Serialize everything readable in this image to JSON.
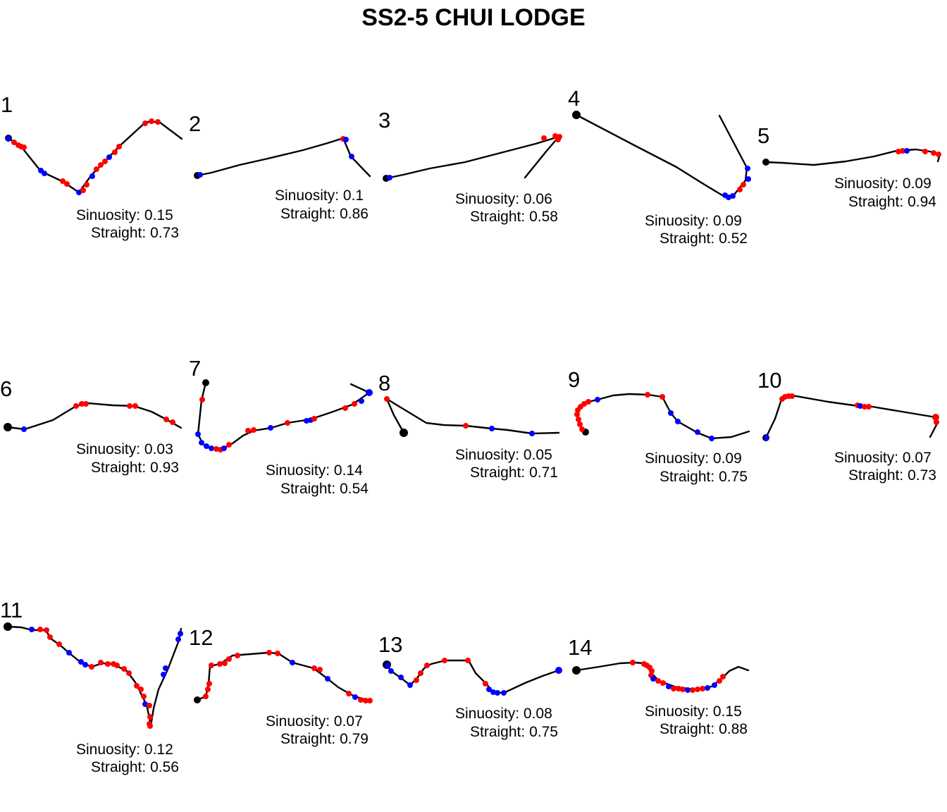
{
  "title": "SS2-5 CHUI LODGE",
  "colors": {
    "track": "#000000",
    "start_point": "#000000",
    "red_points": "#ff0000",
    "blue_points": "#0000ff"
  },
  "labels": {
    "sinuosity_prefix": "Sinuosity:",
    "straight_prefix": "Straight:"
  },
  "panels": [
    {
      "number": "1",
      "sinuosity": "0.15",
      "straight": "0.73"
    },
    {
      "number": "2",
      "sinuosity": "0.1",
      "straight": "0.86"
    },
    {
      "number": "3",
      "sinuosity": "0.06",
      "straight": "0.58"
    },
    {
      "number": "4",
      "sinuosity": "0.09",
      "straight": "0.52"
    },
    {
      "number": "5",
      "sinuosity": "0.09",
      "straight": "0.94"
    },
    {
      "number": "6",
      "sinuosity": "0.03",
      "straight": "0.93"
    },
    {
      "number": "7",
      "sinuosity": "0.14",
      "straight": "0.54"
    },
    {
      "number": "8",
      "sinuosity": "0.05",
      "straight": "0.71"
    },
    {
      "number": "9",
      "sinuosity": "0.09",
      "straight": "0.75"
    },
    {
      "number": "10",
      "sinuosity": "0.07",
      "straight": "0.73"
    },
    {
      "number": "11",
      "sinuosity": "0.12",
      "straight": "0.56"
    },
    {
      "number": "12",
      "sinuosity": "0.07",
      "straight": "0.79"
    },
    {
      "number": "13",
      "sinuosity": "0.08",
      "straight": "0.75"
    },
    {
      "number": "14",
      "sinuosity": "0.15",
      "straight": "0.88"
    }
  ]
}
